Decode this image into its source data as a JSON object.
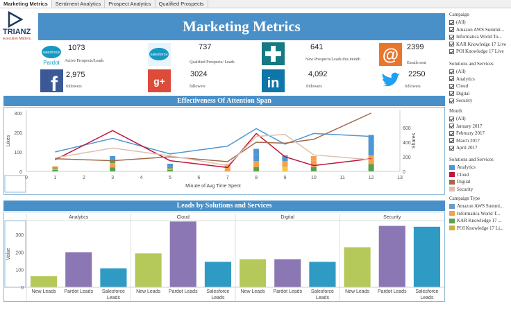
{
  "tabs": [
    {
      "label": "Marketing Metrics",
      "active": true
    },
    {
      "label": "Sentiment Analytics",
      "active": false
    },
    {
      "label": "Prospect Analytics",
      "active": false
    },
    {
      "label": "Qualified Prospects",
      "active": false
    }
  ],
  "logo": {
    "name": "TRIANZ",
    "tagline": "Execution Matters."
  },
  "header": {
    "title": "Marketing Metrics"
  },
  "kpis": {
    "pardot": {
      "icon": "salesforce-pardot-icon",
      "value": "1073",
      "label": "Active Prospects/Leads",
      "logo_text": "salesforce",
      "sub_text": "Pardot"
    },
    "salesforce": {
      "icon": "salesforce-icon",
      "value": "737",
      "label": "Qualified Prospects/ Leads",
      "logo_text": "salesforce"
    },
    "new_prospects": {
      "icon": "plus-icon",
      "value": "641",
      "label": "New Prospects/Leads this month"
    },
    "emails": {
      "icon": "at-sign-icon",
      "value": "2399",
      "label": "Emails sent"
    },
    "facebook": {
      "icon": "facebook-icon",
      "value": "2,975",
      "label": "followers"
    },
    "googleplus": {
      "icon": "google-plus-icon",
      "value": "3024",
      "label": "followers"
    },
    "linkedin": {
      "icon": "linkedin-icon",
      "value": "4,092",
      "label": "followers"
    },
    "twitter": {
      "icon": "twitter-icon",
      "value": "2250",
      "label": "followers"
    }
  },
  "sections": {
    "attention": "Effectiveness Of Attention Span",
    "leads": "Leads by Solutions and Services"
  },
  "chart_data": [
    {
      "type": "line",
      "title": "Effectiveness Of Attention Span",
      "xlabel": "Minute of Avg Time Spent",
      "ylabel": "Likes",
      "y2label": "Shares",
      "xlim": [
        0,
        13
      ],
      "ylim": [
        0,
        300
      ],
      "y2lim": [
        0,
        800
      ],
      "x_ticks": [
        0,
        1,
        2,
        3,
        4,
        5,
        6,
        7,
        8,
        9,
        10,
        11,
        12,
        13
      ],
      "y_ticks": [
        0,
        100,
        200,
        300
      ],
      "y2_ticks": [
        0,
        200,
        400,
        600
      ],
      "x": [
        1,
        3,
        5,
        7,
        8,
        9,
        10,
        12
      ],
      "series": [
        {
          "name": "Analytics",
          "color": "#4e97d2",
          "values": [
            100,
            170,
            90,
            130,
            220,
            140,
            195,
            180
          ]
        },
        {
          "name": "Cloud",
          "color": "#c0143c",
          "values": [
            60,
            210,
            55,
            20,
            195,
            75,
            30,
            65
          ]
        },
        {
          "name": "Digital",
          "color": "#a0694a",
          "values": [
            65,
            55,
            75,
            50,
            150,
            145,
            165,
            300
          ]
        },
        {
          "name": "Security",
          "color": "#e0bdb0",
          "values": [
            70,
            120,
            80,
            30,
            180,
            190,
            85,
            60
          ]
        }
      ],
      "stacked_bars": {
        "x": [
          1,
          3,
          5,
          7,
          8,
          9,
          10,
          12
        ],
        "stacks": [
          [
            {
              "c": "#59a14f",
              "v": 20
            },
            {
              "c": "#f5a04a",
              "v": 20
            },
            {
              "c": "#59a14f",
              "v": 15
            },
            {
              "c": "#f5a04a",
              "v": 15
            }
          ],
          [
            {
              "c": "#59a14f",
              "v": 55
            },
            {
              "c": "#f5a04a",
              "v": 60
            },
            {
              "c": "#59a14f",
              "v": 40
            },
            {
              "c": "#4e97d2",
              "v": 55
            }
          ],
          [
            {
              "c": "#59a14f",
              "v": 20
            },
            {
              "c": "#f5a04a",
              "v": 20
            },
            {
              "c": "#59a14f",
              "v": 20
            },
            {
              "c": "#4e97d2",
              "v": 45
            }
          ],
          [
            {
              "c": "#f5a04a",
              "v": 40
            },
            {
              "c": "#f5a04a",
              "v": 60
            }
          ],
          [
            {
              "c": "#59a14f",
              "v": 60
            },
            {
              "c": "#f5a04a",
              "v": 80
            },
            {
              "c": "#4e97d2",
              "v": 90
            },
            {
              "c": "#4e97d2",
              "v": 80
            }
          ],
          [
            {
              "c": "#edc948",
              "v": 60
            },
            {
              "c": "#f5a04a",
              "v": 80
            },
            {
              "c": "#4e97d2",
              "v": 80
            }
          ],
          [
            {
              "c": "#59a14f",
              "v": 60
            },
            {
              "c": "#f5a04a",
              "v": 90
            },
            {
              "c": "#f5a04a",
              "v": 60
            }
          ],
          [
            {
              "c": "#59a14f",
              "v": 100
            },
            {
              "c": "#f5a04a",
              "v": 120
            },
            {
              "c": "#4e97d2",
              "v": 160
            },
            {
              "c": "#4e97d2",
              "v": 120
            }
          ]
        ]
      }
    },
    {
      "type": "bar",
      "title": "Leads by Solutions and Services",
      "ylabel": "Value",
      "ylim": [
        0,
        380
      ],
      "y_ticks": [
        0,
        100,
        200,
        300
      ],
      "groups": [
        "Analytics",
        "Cloud",
        "Digital",
        "Security"
      ],
      "categories": [
        "New Leads",
        "Pardot Leads",
        "Salesforce Leads"
      ],
      "category_lines": [
        [
          "New Leads"
        ],
        [
          "Pardot Leads"
        ],
        [
          "Salesforce",
          "Leads"
        ]
      ],
      "colors": [
        "#b5c95a",
        "#8a77b4",
        "#2f9ac4"
      ],
      "values": [
        [
          63,
          200,
          108
        ],
        [
          193,
          375,
          145
        ],
        [
          160,
          160,
          145
        ],
        [
          228,
          350,
          345
        ]
      ]
    }
  ],
  "filters": {
    "campaign": {
      "title": "Campaign",
      "items": [
        "(All)",
        "Amazon AWS Summit...",
        "Informatica World To...",
        "KAR Knowledge 17 Live",
        "POI Knowledge 17 Live"
      ]
    },
    "solutions": {
      "title": "Solutions and Services",
      "items": [
        "(All)",
        "Analytics",
        "Cloud",
        "Digital",
        "Security"
      ]
    },
    "month": {
      "title": "Month",
      "items": [
        "(All)",
        "January 2017",
        "February 2017",
        "March 2017",
        "April 2017"
      ]
    }
  },
  "legends": {
    "solutions": {
      "title": "Solutions and Services",
      "items": [
        {
          "label": "Analytics",
          "color": "#4e97d2"
        },
        {
          "label": "Cloud",
          "color": "#c0143c"
        },
        {
          "label": "Digital",
          "color": "#a0694a"
        },
        {
          "label": "Security",
          "color": "#e0bdb0"
        }
      ]
    },
    "campaign_type": {
      "title": "Campaign Type",
      "items": [
        {
          "label": "Amazon AWS Summi...",
          "color": "#6b9ac8"
        },
        {
          "label": "Informatica World T...",
          "color": "#f5a04a"
        },
        {
          "label": "KAR Knowledge 17 ...",
          "color": "#59a14f"
        },
        {
          "label": "POI Knowledge 17 Li...",
          "color": "#c9b037"
        }
      ]
    }
  }
}
